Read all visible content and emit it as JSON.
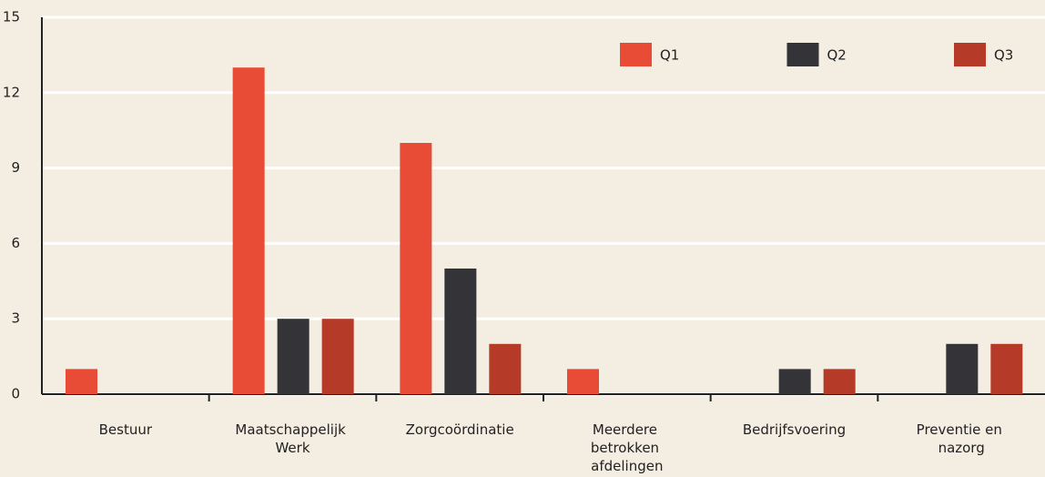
{
  "chart_data": {
    "type": "bar",
    "categories": [
      "Bestuur",
      "Maatschappelijk Werk",
      "Zorgcoördinatie",
      "Meerdere betrokken afdelingen",
      "Bedrijfsvoering",
      "Preventie en nazorg"
    ],
    "series": [
      {
        "name": "Q1",
        "color": "#e84c36",
        "values": [
          1,
          13,
          10,
          1,
          0,
          0
        ]
      },
      {
        "name": "Q2",
        "color": "#333338",
        "values": [
          0,
          3,
          5,
          0,
          1,
          2
        ]
      },
      {
        "name": "Q3",
        "color": "#b53a28",
        "values": [
          0,
          3,
          2,
          0,
          1,
          2
        ]
      }
    ],
    "ylim": [
      0,
      15
    ],
    "yticks": [
      0,
      3,
      6,
      9,
      12,
      15
    ],
    "grid": true,
    "legend": "top-right"
  }
}
